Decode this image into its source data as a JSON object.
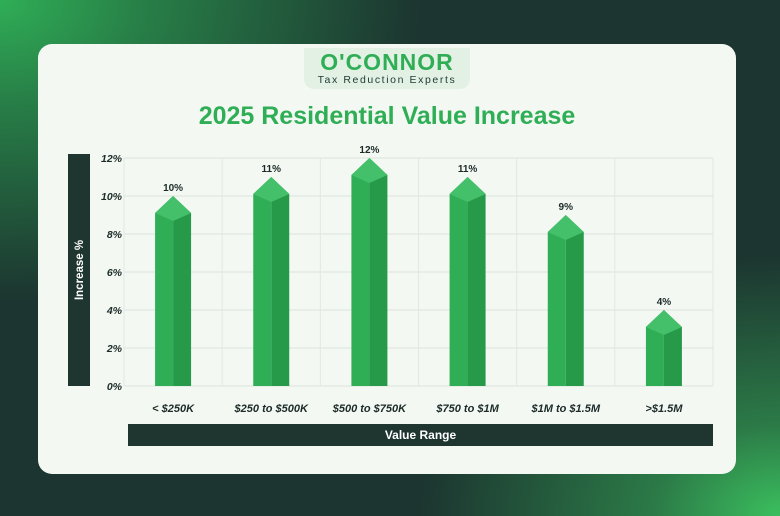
{
  "logo": {
    "name": "O'CONNOR",
    "tagline": "Tax Reduction Experts"
  },
  "chart_data": {
    "type": "bar",
    "title": "2025 Residential Value Increase",
    "xlabel": "Value Range",
    "ylabel": "Increase %",
    "categories": [
      "< $250K",
      "$250 to $500K",
      "$500 to $750K",
      "$750 to $1M",
      "$1M to $1.5M",
      ">$1.5M"
    ],
    "values": [
      10,
      11,
      12,
      11,
      9,
      4
    ],
    "data_labels": [
      "10%",
      "11%",
      "12%",
      "11%",
      "9%",
      "4%"
    ],
    "ylim": [
      0,
      12
    ],
    "yticks": [
      "0%",
      "2%",
      "4%",
      "6%",
      "8%",
      "10%",
      "12%"
    ],
    "grid": true,
    "colors": {
      "bar": "#2fae56",
      "bar_dark": "#269a49",
      "bar_light": "#45c06a",
      "axis_band": "#1e3530",
      "title": "#2fae56"
    }
  }
}
